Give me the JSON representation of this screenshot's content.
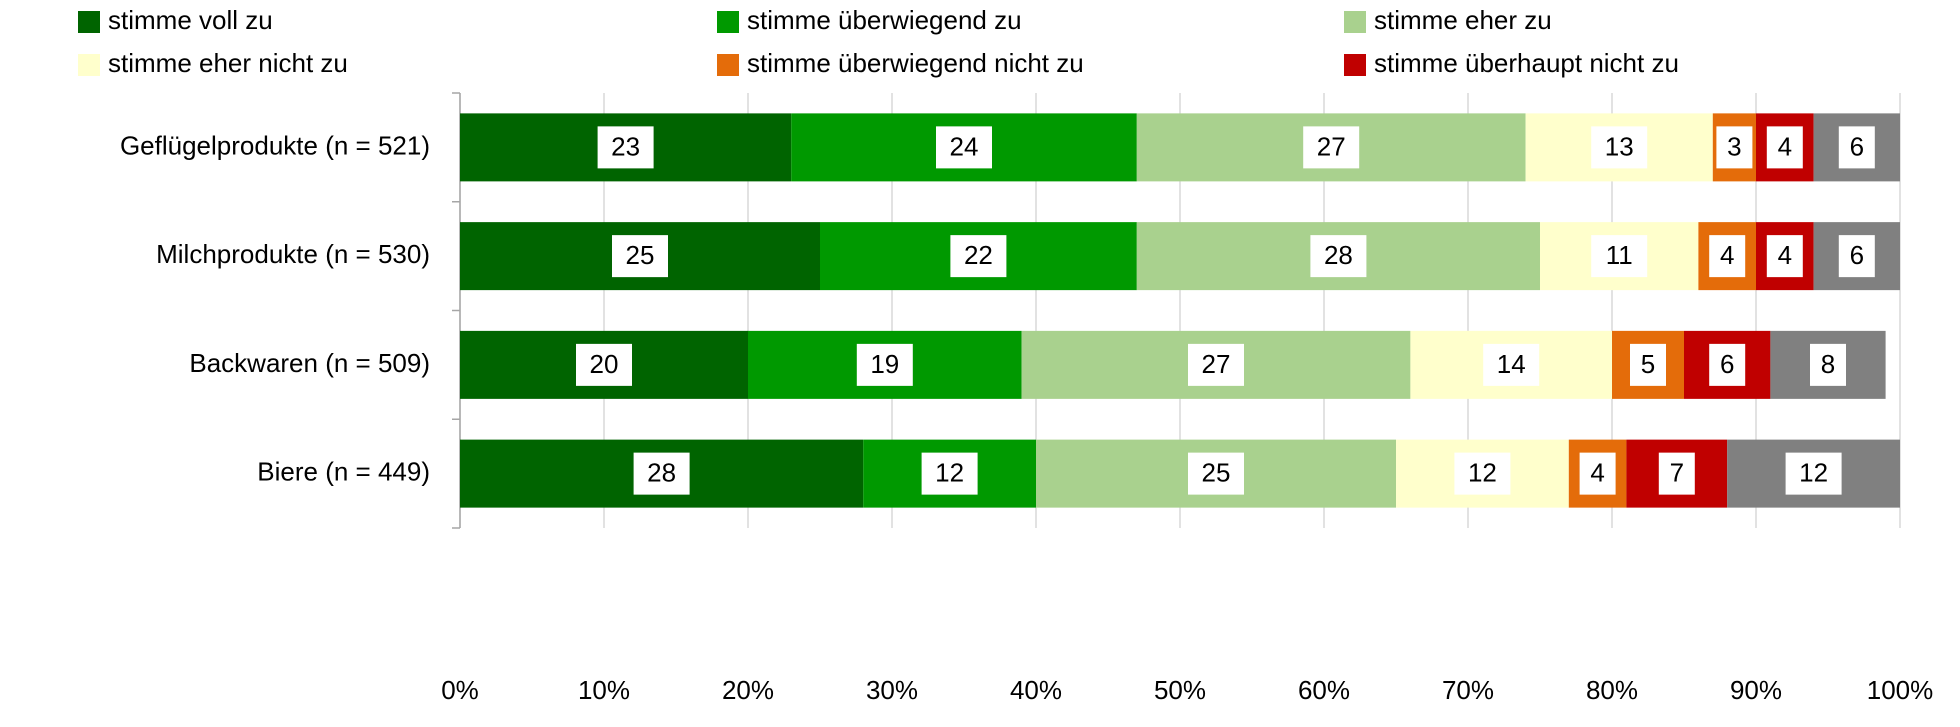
{
  "chart_data": {
    "type": "stacked_barh",
    "categories": [
      "Geflügelprodukte (n = 521)",
      "Milchprodukte (n = 530)",
      "Backwaren (n = 509)",
      "Biere (n = 449)"
    ],
    "series": [
      {
        "name": "stimme voll zu",
        "color": "#006400",
        "values": [
          23,
          25,
          20,
          28
        ]
      },
      {
        "name": "stimme überwiegend zu",
        "color": "#009900",
        "values": [
          24,
          22,
          19,
          12
        ]
      },
      {
        "name": "stimme eher zu",
        "color": "#a9d18e",
        "values": [
          27,
          28,
          27,
          25
        ]
      },
      {
        "name": "stimme eher nicht zu",
        "color": "#ffffcc",
        "values": [
          13,
          11,
          14,
          12
        ]
      },
      {
        "name": "stimme überwiegend nicht zu",
        "color": "#e46c0a",
        "values": [
          3,
          4,
          5,
          4
        ]
      },
      {
        "name": "stimme überhaupt nicht zu",
        "color": "#c00000",
        "values": [
          4,
          4,
          6,
          7
        ]
      },
      {
        "color": "#808080",
        "values": [
          6,
          6,
          8,
          12
        ]
      }
    ],
    "xlim": [
      0,
      100
    ],
    "xticks": [
      {
        "value": 0,
        "label": "0%"
      },
      {
        "value": 10,
        "label": "10%"
      },
      {
        "value": 20,
        "label": "20%"
      },
      {
        "value": 30,
        "label": "30%"
      },
      {
        "value": 40,
        "label": "40%"
      },
      {
        "value": 50,
        "label": "50%"
      },
      {
        "value": 60,
        "label": "60%"
      },
      {
        "value": 70,
        "label": "70%"
      },
      {
        "value": 80,
        "label": "80%"
      },
      {
        "value": 90,
        "label": "90%"
      },
      {
        "value": 100,
        "label": "100%"
      }
    ],
    "grid": true,
    "legend": "top"
  }
}
